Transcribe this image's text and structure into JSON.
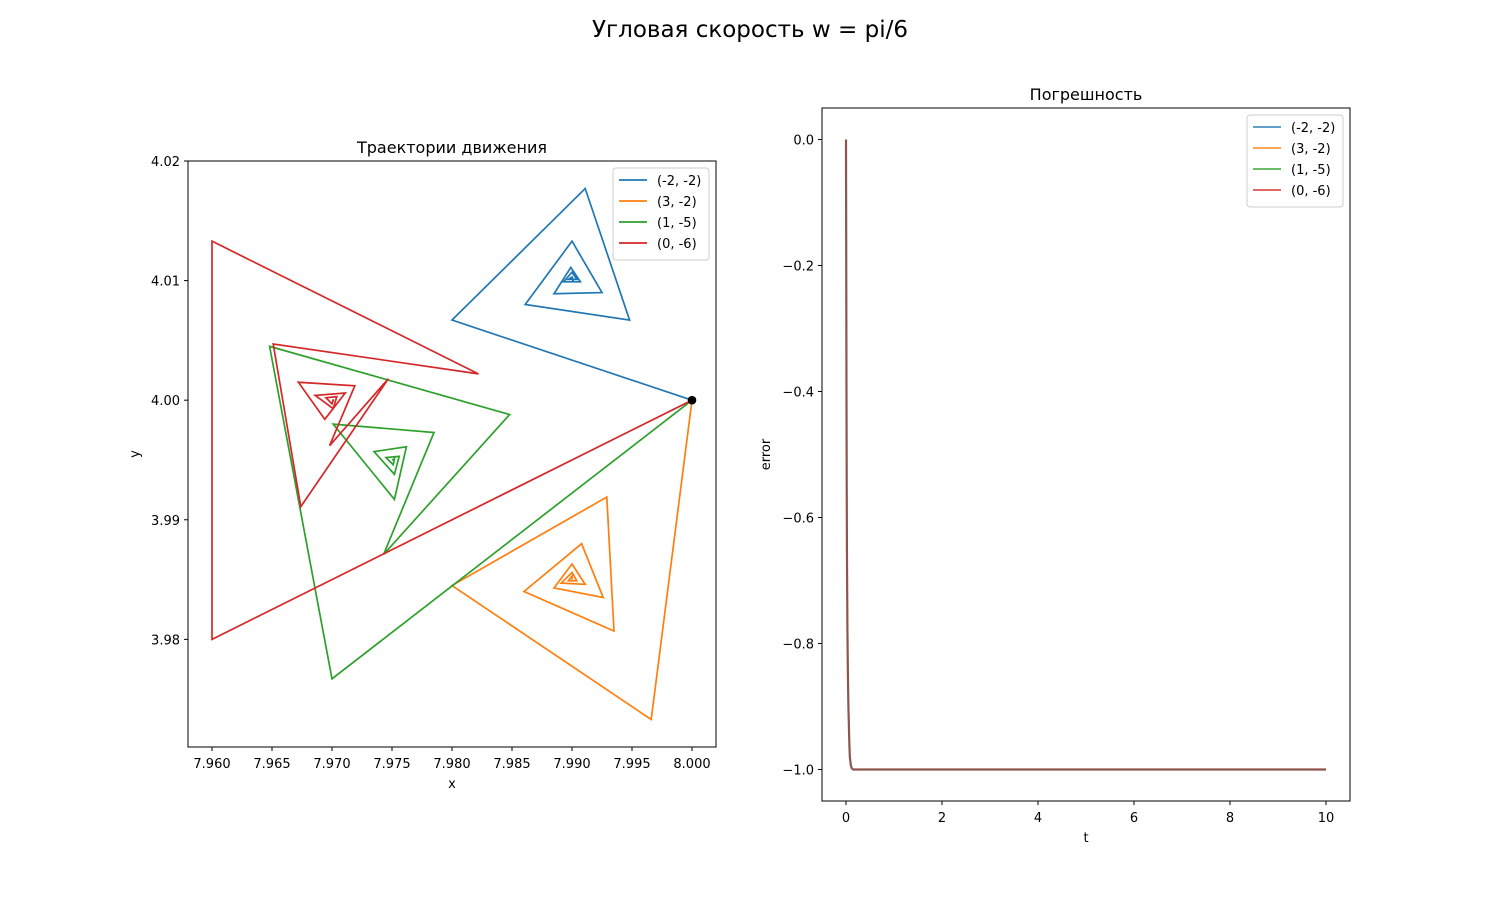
{
  "figure": {
    "suptitle": "Угловая скорость w = pi/6"
  },
  "chart_data": [
    {
      "type": "line",
      "title": "Траектории движения",
      "xlabel": "x",
      "ylabel": "y",
      "xlim": [
        7.958,
        8.002
      ],
      "ylim": [
        3.971,
        4.02
      ],
      "xticks": [
        7.96,
        7.965,
        7.97,
        7.975,
        7.98,
        7.985,
        7.99,
        7.995,
        8.0
      ],
      "xtick_labels": [
        "7.960",
        "7.965",
        "7.970",
        "7.975",
        "7.980",
        "7.985",
        "7.990",
        "7.995",
        "8.000"
      ],
      "yticks": [
        3.98,
        3.99,
        4.0,
        4.01,
        4.02
      ],
      "ytick_labels": [
        "3.98",
        "3.99",
        "4.00",
        "4.01",
        "4.02"
      ],
      "grid": false,
      "legend_position": "upper right",
      "series": [
        {
          "name": "(-2, -2)",
          "color": "#1f77b4",
          "points": [
            [
              8.0,
              4.0
            ],
            [
              7.98,
              4.0067
            ],
            [
              7.9911,
              4.0177
            ],
            [
              7.9948,
              4.0067
            ],
            [
              7.9861,
              4.008
            ],
            [
              7.99,
              4.0133
            ],
            [
              7.9925,
              4.009
            ],
            [
              7.9885,
              4.0089
            ],
            [
              7.9899,
              4.0111
            ],
            [
              7.9907,
              4.0099
            ],
            [
              7.9893,
              4.0099
            ],
            [
              7.99,
              4.0107
            ],
            [
              7.9904,
              4.0101
            ],
            [
              7.9897,
              4.0101
            ],
            [
              7.99,
              4.0103
            ],
            [
              7.9901,
              4.01
            ],
            [
              7.99,
              4.01
            ]
          ]
        },
        {
          "name": "(3, -2)",
          "color": "#ff7f0e",
          "points": [
            [
              8.0,
              4.0
            ],
            [
              7.9966,
              3.9733
            ],
            [
              7.98,
              3.9845
            ],
            [
              7.9929,
              3.9919
            ],
            [
              7.9935,
              3.9807
            ],
            [
              7.986,
              3.984
            ],
            [
              7.9908,
              3.988
            ],
            [
              7.9926,
              3.9835
            ],
            [
              7.9885,
              3.9843
            ],
            [
              7.99,
              3.9863
            ],
            [
              7.9911,
              3.9846
            ],
            [
              7.9891,
              3.9847
            ],
            [
              7.99,
              3.9856
            ],
            [
              7.9904,
              3.9849
            ],
            [
              7.9897,
              3.9849
            ],
            [
              7.99,
              3.9853
            ],
            [
              7.99,
              3.985
            ]
          ]
        },
        {
          "name": "(1, -5)",
          "color": "#2ca02c",
          "points": [
            [
              8.0,
              4.0
            ],
            [
              7.97,
              3.9767
            ],
            [
              7.9648,
              4.0045
            ],
            [
              7.9848,
              3.9988
            ],
            [
              7.9743,
              3.9871
            ],
            [
              7.9785,
              3.9973
            ],
            [
              7.9701,
              3.998
            ],
            [
              7.9752,
              3.9917
            ],
            [
              7.9762,
              3.9961
            ],
            [
              7.9735,
              3.9957
            ],
            [
              7.9752,
              3.9938
            ],
            [
              7.9756,
              3.9953
            ],
            [
              7.9745,
              3.9952
            ],
            [
              7.9751,
              3.9946
            ],
            [
              7.9752,
              3.9951
            ],
            [
              7.975,
              3.995
            ]
          ]
        },
        {
          "name": "(0, -6)",
          "color": "#d62728",
          "points": [
            [
              8.0,
              4.0
            ],
            [
              7.96,
              3.98
            ],
            [
              7.96,
              4.0133
            ],
            [
              7.9822,
              4.0022
            ],
            [
              7.9651,
              4.0047
            ],
            [
              7.9674,
              3.9911
            ],
            [
              7.9747,
              4.0018
            ],
            [
              7.9698,
              3.9962
            ],
            [
              7.9719,
              4.0012
            ],
            [
              7.9672,
              4.0015
            ],
            [
              7.9694,
              3.9984
            ],
            [
              7.9711,
              4.0006
            ],
            [
              7.9686,
              4.0004
            ],
            [
              7.9701,
              3.9993
            ],
            [
              7.9704,
              4.0003
            ],
            [
              7.9695,
              4.0002
            ],
            [
              7.97,
              3.9997
            ],
            [
              7.9701,
              4.0
            ],
            [
              7.97,
              4.0
            ]
          ]
        }
      ],
      "markers": [
        {
          "x": 8.0,
          "y": 4.0,
          "color": "#000000"
        }
      ]
    },
    {
      "type": "line",
      "title": "Погрешность",
      "xlabel": "t",
      "ylabel": "error",
      "xlim": [
        -0.5,
        10.5
      ],
      "ylim": [
        -1.05,
        0.05
      ],
      "xticks": [
        0,
        2,
        4,
        6,
        8,
        10
      ],
      "xtick_labels": [
        "0",
        "2",
        "4",
        "6",
        "8",
        "10"
      ],
      "yticks": [
        0.0,
        -0.2,
        -0.4,
        -0.6,
        -0.8,
        -1.0
      ],
      "ytick_labels": [
        "0.0",
        "−0.2",
        "−0.4",
        "−0.6",
        "−0.8",
        "−1.0"
      ],
      "grid": false,
      "legend_position": "upper right",
      "series": [
        {
          "name": "(-2, -2)",
          "color": "#1f77b4"
        },
        {
          "name": "(3, -2)",
          "color": "#ff7f0e"
        },
        {
          "name": "(1, -5)",
          "color": "#2ca02c"
        },
        {
          "name": "(0, -6)",
          "color": "#d62728"
        }
      ],
      "curve": {
        "color": "#8c564b",
        "x": [
          0,
          0.005,
          0.01,
          0.015,
          0.02,
          0.03,
          0.04,
          0.05,
          0.06,
          0.07,
          0.08,
          0.1,
          0.12,
          0.15,
          0.2,
          0.5,
          1,
          2,
          4,
          6,
          8,
          10
        ],
        "y": [
          0.0,
          -0.2,
          -0.4,
          -0.55,
          -0.66,
          -0.78,
          -0.85,
          -0.9,
          -0.93,
          -0.96,
          -0.98,
          -0.993,
          -0.998,
          -1.0,
          -1.0,
          -1.0,
          -1.0,
          -1.0,
          -1.0,
          -1.0,
          -1.0,
          -1.0
        ]
      }
    }
  ]
}
